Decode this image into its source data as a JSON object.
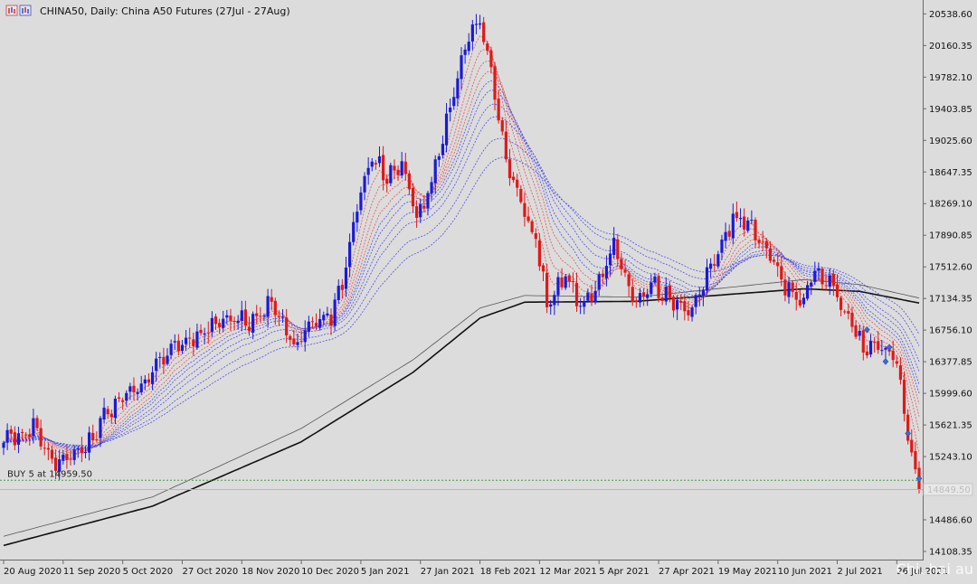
{
  "window": {
    "title": "CHINA50, Daily:  China A50 Futures (27Jul - 27Aug)",
    "icon": "window-icon"
  },
  "order_line": {
    "label": "BUY 5 at 14959.50"
  },
  "watermark": "Chi..hai au",
  "colors": {
    "background": "#dcdcdc",
    "bull": "#1a1ad6",
    "bear": "#e01818",
    "ma_long": "#111111",
    "ma_long_thin": "#555555",
    "ema_fast": "#e05050",
    "ema_slow": "#4a4ae0",
    "order_line": "#4a9a4a"
  },
  "chart_data": {
    "type": "candlestick",
    "symbol": "CHINA50",
    "timeframe": "Daily",
    "y_ticks": [
      "20538.60",
      "20160.35",
      "19782.10",
      "19403.85",
      "19025.60",
      "18647.35",
      "18269.10",
      "17890.85",
      "17512.60",
      "17134.35",
      "16756.10",
      "16377.85",
      "15999.60",
      "15621.35",
      "15243.10",
      "14864.85",
      "14486.60",
      "14108.35"
    ],
    "ylim": [
      14000,
      20640
    ],
    "x_tick_labels": [
      "20 Aug 2020",
      "11 Sep 2020",
      "5 Oct 2020",
      "27 Oct 2020",
      "18 Nov 2020",
      "10 Dec 2020",
      "5 Jan 2021",
      "27 Jan 2021",
      "18 Feb 2021",
      "12 Mar 2021",
      "5 Apr 2021",
      "27 Apr 2021",
      "19 May 2021",
      "10 Jun 2021",
      "2 Jul 2021",
      "26 Jul 2021"
    ],
    "x_tick_positions": [
      0,
      16,
      32,
      48,
      64,
      80,
      96,
      112,
      128,
      144,
      160,
      176,
      192,
      208,
      224,
      240
    ],
    "bar_count": 247,
    "current_price": "14849.50",
    "order_price": 14959.5,
    "close_anchors": [
      [
        0,
        15420
      ],
      [
        8,
        15600
      ],
      [
        14,
        15180
      ],
      [
        22,
        15360
      ],
      [
        30,
        15900
      ],
      [
        38,
        16150
      ],
      [
        44,
        16500
      ],
      [
        52,
        16650
      ],
      [
        60,
        16900
      ],
      [
        66,
        16850
      ],
      [
        72,
        17080
      ],
      [
        78,
        16560
      ],
      [
        84,
        16900
      ],
      [
        88,
        16920
      ],
      [
        91,
        17300
      ],
      [
        95,
        18300
      ],
      [
        99,
        18850
      ],
      [
        103,
        18560
      ],
      [
        107,
        18800
      ],
      [
        111,
        18100
      ],
      [
        115,
        18500
      ],
      [
        121,
        19600
      ],
      [
        125,
        20250
      ],
      [
        128,
        20450
      ],
      [
        131,
        19850
      ],
      [
        134,
        19000
      ],
      [
        138,
        18400
      ],
      [
        143,
        17850
      ],
      [
        146,
        17100
      ],
      [
        151,
        17420
      ],
      [
        155,
        17050
      ],
      [
        159,
        17250
      ],
      [
        164,
        17780
      ],
      [
        169,
        17100
      ],
      [
        174,
        17320
      ],
      [
        179,
        17150
      ],
      [
        184,
        16950
      ],
      [
        188,
        17300
      ],
      [
        193,
        17800
      ],
      [
        196,
        18100
      ],
      [
        200,
        18050
      ],
      [
        205,
        17720
      ],
      [
        209,
        17350
      ],
      [
        214,
        17050
      ],
      [
        218,
        17420
      ],
      [
        222,
        17330
      ],
      [
        227,
        16900
      ],
      [
        231,
        16550
      ],
      [
        236,
        16580
      ],
      [
        240,
        16380
      ],
      [
        243,
        15450
      ],
      [
        246,
        14849.5
      ]
    ],
    "series": [
      {
        "name": "MA long",
        "style": "solid-thick",
        "anchors": [
          [
            0,
            14180
          ],
          [
            40,
            14650
          ],
          [
            80,
            15420
          ],
          [
            110,
            16250
          ],
          [
            128,
            16900
          ],
          [
            140,
            17090
          ],
          [
            170,
            17100
          ],
          [
            200,
            17200
          ],
          [
            215,
            17250
          ],
          [
            230,
            17220
          ],
          [
            246,
            17080
          ]
        ]
      },
      {
        "name": "MA long thin",
        "style": "solid-thin",
        "anchors": [
          [
            0,
            14290
          ],
          [
            40,
            14760
          ],
          [
            80,
            15580
          ],
          [
            110,
            16400
          ],
          [
            128,
            17020
          ],
          [
            140,
            17170
          ],
          [
            170,
            17150
          ],
          [
            200,
            17290
          ],
          [
            215,
            17360
          ],
          [
            230,
            17300
          ],
          [
            246,
            17140
          ]
        ]
      }
    ],
    "ema_periods": [
      5,
      8,
      11,
      14,
      17,
      20,
      25,
      30,
      40,
      50
    ],
    "bull_markers": [
      [
        243,
        15520
      ],
      [
        246,
        14980
      ],
      [
        232,
        16760
      ],
      [
        237,
        16380
      ],
      [
        238,
        16550
      ]
    ]
  }
}
